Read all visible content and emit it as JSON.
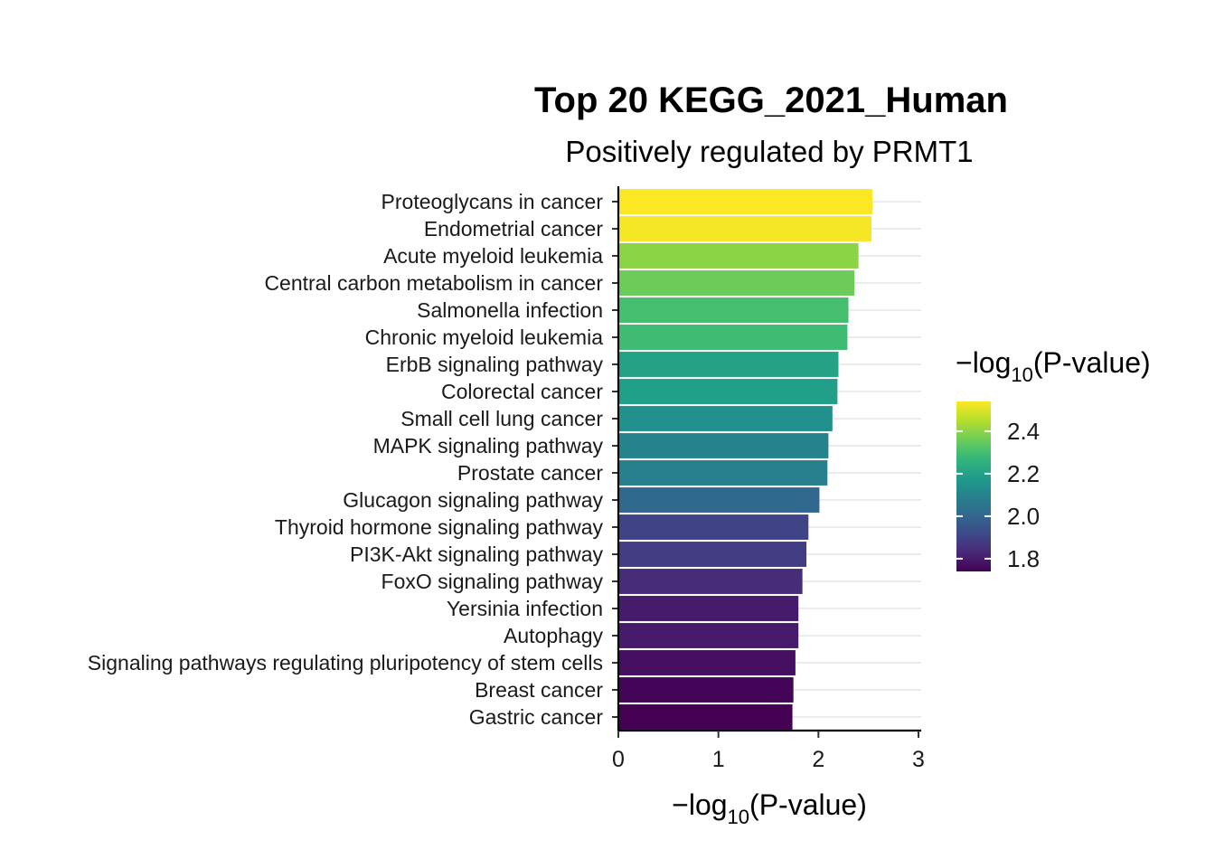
{
  "chart_data": {
    "type": "bar",
    "orientation": "horizontal",
    "title": "Top 20 KEGG_2021_Human",
    "subtitle": "Positively regulated by PRMT1",
    "xlabel": {
      "prefix": "−log",
      "sub": "10",
      "suffix": "(P-value)"
    },
    "ylabel": "",
    "xlim": [
      0,
      3
    ],
    "xticks": [
      "0",
      "1",
      "2",
      "3"
    ],
    "grid": "horizontal major gridlines",
    "categories": [
      "Proteoglycans in cancer",
      "Endometrial cancer",
      "Acute myeloid leukemia",
      "Central carbon metabolism in cancer",
      "Salmonella infection",
      "Chronic myeloid leukemia",
      "ErbB signaling pathway",
      "Colorectal cancer",
      "Small cell lung cancer",
      "MAPK signaling pathway",
      "Prostate cancer",
      "Glucagon signaling pathway",
      "Thyroid hormone signaling pathway",
      "PI3K-Akt signaling pathway",
      "FoxO signaling pathway",
      "Yersinia infection",
      "Autophagy",
      "Signaling pathways regulating pluripotency of stem cells",
      "Breast cancer",
      "Gastric cancer"
    ],
    "values": [
      2.54,
      2.53,
      2.4,
      2.36,
      2.3,
      2.29,
      2.2,
      2.19,
      2.14,
      2.1,
      2.09,
      2.01,
      1.9,
      1.88,
      1.84,
      1.8,
      1.8,
      1.77,
      1.75,
      1.74
    ],
    "color_scale": {
      "name": "viridis",
      "domain": [
        1.74,
        2.54
      ],
      "stops": [
        "#440154",
        "#482878",
        "#3E4A89",
        "#31688E",
        "#26828E",
        "#1F9E89",
        "#35B779",
        "#6DCD59",
        "#B4DE2C",
        "#FDE725"
      ]
    },
    "legend": {
      "title": {
        "prefix": "−log",
        "sub": "10",
        "suffix": "(P-value)"
      },
      "placement": "right",
      "ticks": [
        {
          "value": 2.4,
          "label": "2.4"
        },
        {
          "value": 2.2,
          "label": "2.2"
        },
        {
          "value": 2.0,
          "label": "2.0"
        },
        {
          "value": 1.8,
          "label": "1.8"
        }
      ]
    }
  }
}
